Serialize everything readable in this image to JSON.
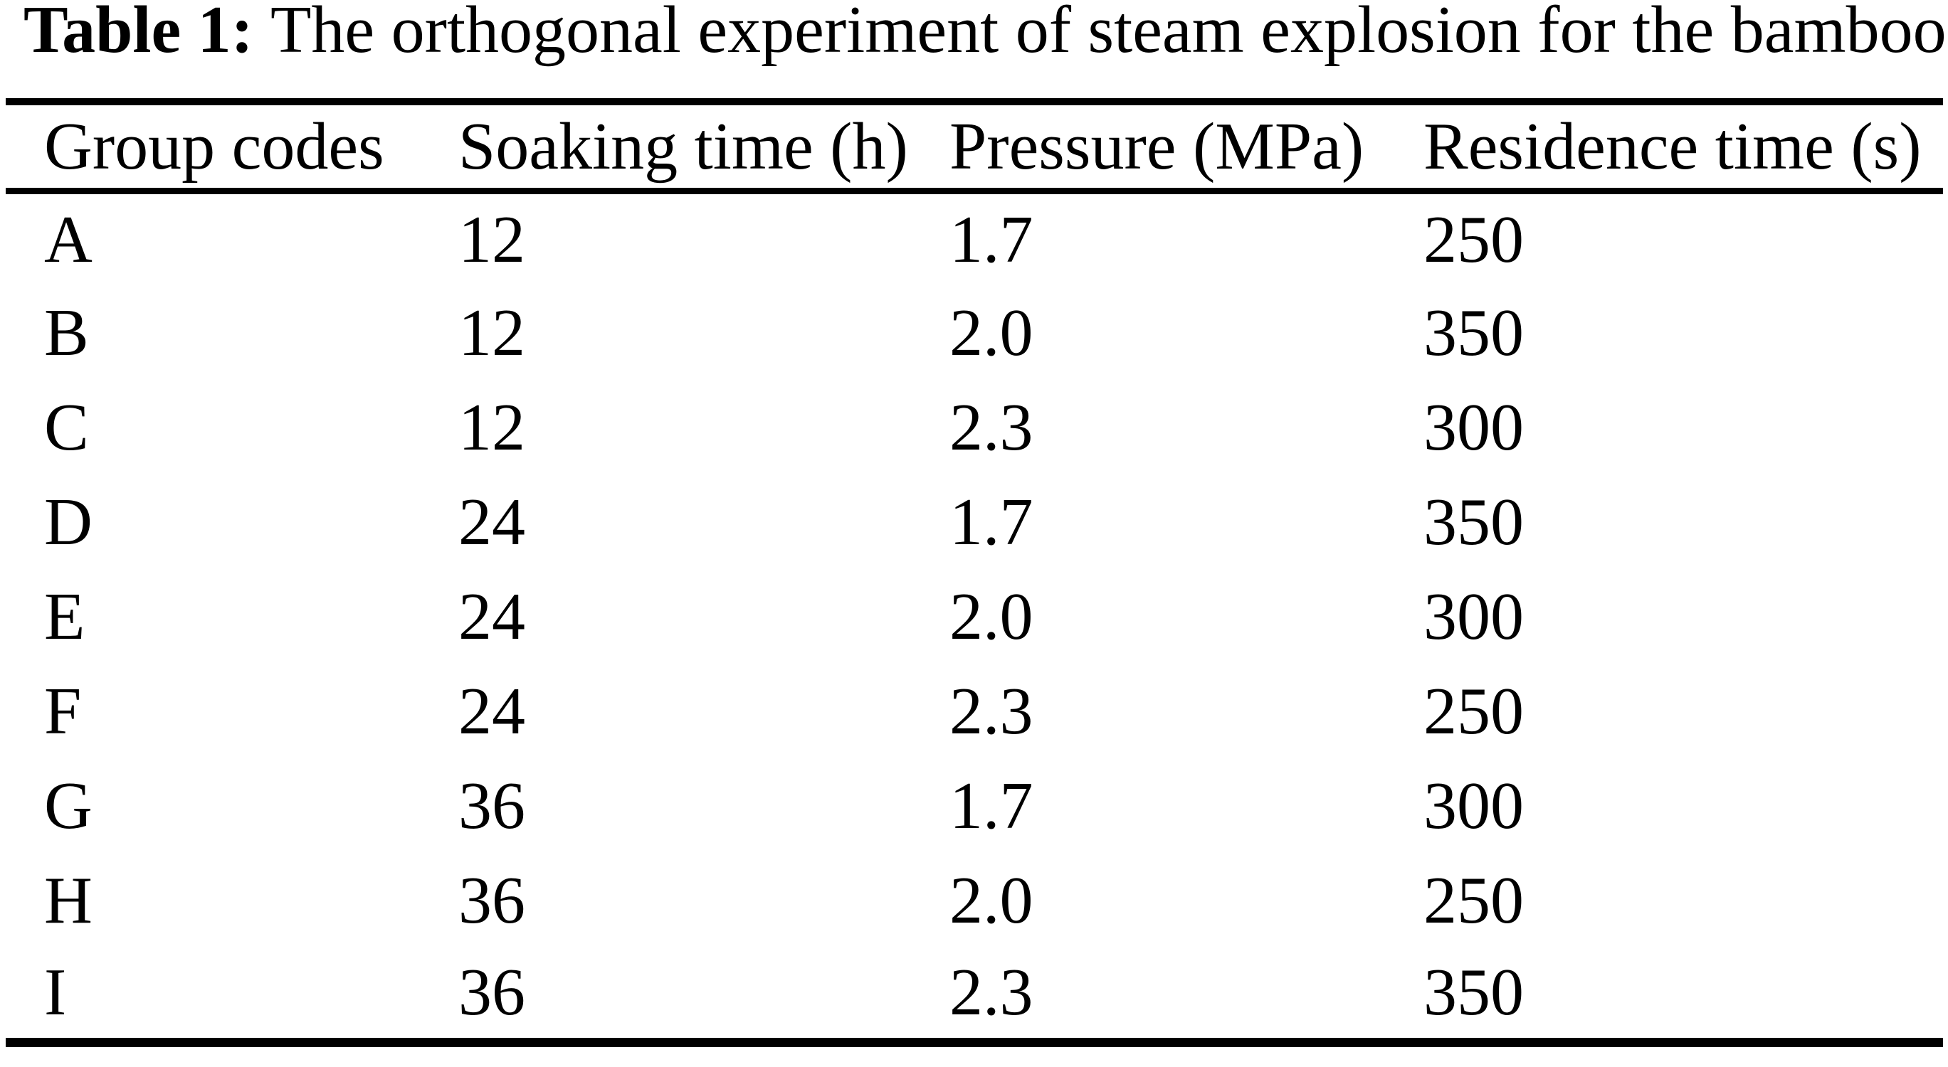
{
  "title": {
    "label": "Table 1:",
    "caption": "The orthogonal experiment of steam explosion for the bamboo"
  },
  "chart_data": {
    "type": "table",
    "title": "Table 1: The orthogonal experiment of steam explosion for the bamboo",
    "columns": [
      "Group codes",
      "Soaking time (h)",
      "Pressure (MPa)",
      "Residence time (s)"
    ],
    "rows": [
      [
        "A",
        "12",
        "1.7",
        "250"
      ],
      [
        "B",
        "12",
        "2.0",
        "350"
      ],
      [
        "C",
        "12",
        "2.3",
        "300"
      ],
      [
        "D",
        "24",
        "1.7",
        "350"
      ],
      [
        "E",
        "24",
        "2.0",
        "300"
      ],
      [
        "F",
        "24",
        "2.3",
        "250"
      ],
      [
        "G",
        "36",
        "1.7",
        "300"
      ],
      [
        "H",
        "36",
        "2.0",
        "250"
      ],
      [
        "I",
        "36",
        "2.3",
        "350"
      ]
    ]
  },
  "colors": {
    "background": "#ffffff",
    "text": "#000000",
    "rule": "#000000"
  }
}
